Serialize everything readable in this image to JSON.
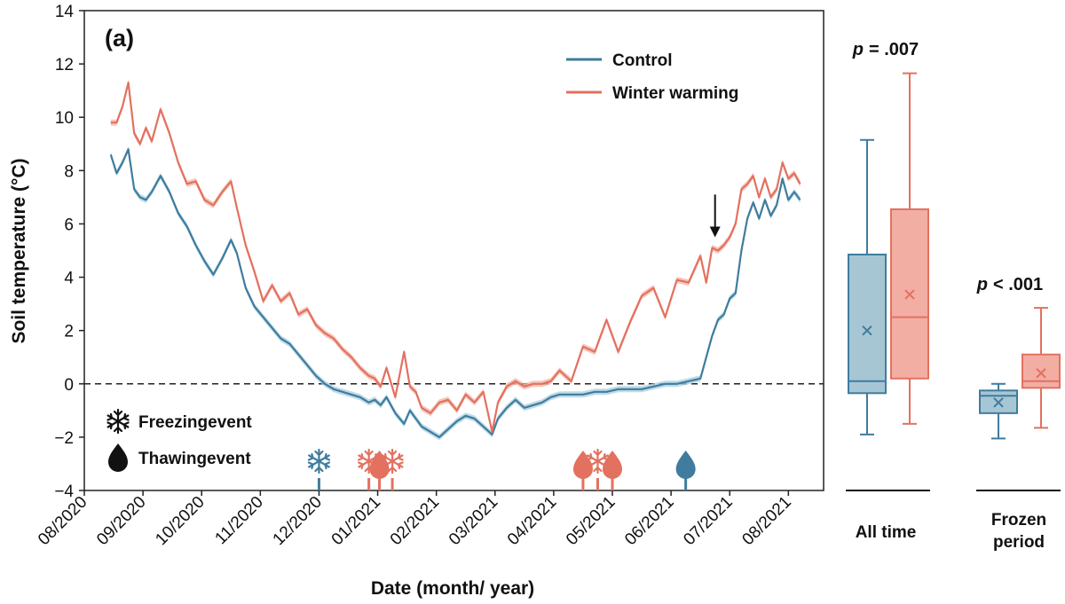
{
  "chart_data": [
    {
      "type": "line",
      "panel_label": "(a)",
      "xlabel": "Date (month/ year)",
      "ylabel": "Soil temperature (°C)",
      "ylim": [
        -4,
        14
      ],
      "yticks": [
        -4,
        -2,
        0,
        2,
        4,
        6,
        8,
        10,
        12,
        14
      ],
      "ytick_labels": [
        "−4",
        "−2",
        "0",
        "2",
        "4",
        "6",
        "8",
        "10",
        "12",
        "14"
      ],
      "xlim": [
        0,
        12.6
      ],
      "xtick_labels": [
        "08/2020",
        "09/2020",
        "10/2020",
        "11/2020",
        "12/2020",
        "01/2021",
        "02/2021",
        "03/2021",
        "04/2021",
        "05/2021",
        "06/2021",
        "07/2021",
        "08/2021"
      ],
      "reference_line": 0,
      "legend": [
        {
          "name": "Control",
          "color": "#3f7c9e"
        },
        {
          "name": "Winter warming",
          "color": "#e3715f"
        }
      ],
      "series": [
        {
          "name": "Control",
          "color": "#3f7c9e",
          "band_color": "#a8cfe0",
          "x": [
            0.45,
            0.55,
            0.65,
            0.75,
            0.85,
            0.95,
            1.05,
            1.15,
            1.3,
            1.45,
            1.6,
            1.75,
            1.9,
            2.05,
            2.2,
            2.35,
            2.5,
            2.6,
            2.75,
            2.9,
            3.05,
            3.2,
            3.35,
            3.5,
            3.65,
            3.8,
            3.95,
            4.1,
            4.25,
            4.4,
            4.55,
            4.7,
            4.85,
            4.95,
            5.05,
            5.15,
            5.3,
            5.45,
            5.55,
            5.65,
            5.75,
            5.9,
            6.05,
            6.2,
            6.35,
            6.5,
            6.65,
            6.8,
            6.95,
            7.05,
            7.2,
            7.35,
            7.5,
            7.65,
            7.8,
            7.95,
            8.1,
            8.3,
            8.5,
            8.7,
            8.9,
            9.1,
            9.3,
            9.5,
            9.7,
            9.9,
            10.1,
            10.3,
            10.5,
            10.6,
            10.7,
            10.8,
            10.9,
            11.0,
            11.1,
            11.2,
            11.3,
            11.4,
            11.5,
            11.6,
            11.7,
            11.8,
            11.9,
            12.0,
            12.1,
            12.2
          ],
          "y": [
            8.6,
            7.9,
            8.3,
            8.8,
            7.3,
            7.0,
            6.9,
            7.2,
            7.8,
            7.2,
            6.4,
            5.9,
            5.2,
            4.6,
            4.1,
            4.7,
            5.4,
            4.9,
            3.6,
            2.9,
            2.5,
            2.1,
            1.7,
            1.5,
            1.1,
            0.7,
            0.3,
            0.0,
            -0.2,
            -0.3,
            -0.4,
            -0.5,
            -0.7,
            -0.6,
            -0.8,
            -0.5,
            -1.1,
            -1.5,
            -1.0,
            -1.3,
            -1.6,
            -1.8,
            -2.0,
            -1.7,
            -1.4,
            -1.2,
            -1.3,
            -1.6,
            -1.9,
            -1.3,
            -0.9,
            -0.6,
            -0.9,
            -0.8,
            -0.7,
            -0.5,
            -0.4,
            -0.4,
            -0.4,
            -0.3,
            -0.3,
            -0.2,
            -0.2,
            -0.2,
            -0.1,
            0.0,
            0.0,
            0.1,
            0.2,
            1.0,
            1.8,
            2.4,
            2.6,
            3.2,
            3.4,
            5.0,
            6.2,
            6.8,
            6.2,
            6.9,
            6.3,
            6.7,
            7.7,
            6.9,
            7.2,
            6.9
          ]
        },
        {
          "name": "Winter warming",
          "color": "#e3715f",
          "band_color": "#f4b3a6",
          "x": [
            0.45,
            0.55,
            0.65,
            0.75,
            0.85,
            0.95,
            1.05,
            1.15,
            1.3,
            1.45,
            1.6,
            1.75,
            1.9,
            2.05,
            2.2,
            2.35,
            2.5,
            2.6,
            2.75,
            2.9,
            3.05,
            3.2,
            3.35,
            3.5,
            3.65,
            3.8,
            3.95,
            4.1,
            4.25,
            4.4,
            4.55,
            4.7,
            4.85,
            4.95,
            5.05,
            5.15,
            5.3,
            5.45,
            5.55,
            5.65,
            5.75,
            5.9,
            6.05,
            6.2,
            6.35,
            6.5,
            6.65,
            6.8,
            6.95,
            7.05,
            7.2,
            7.35,
            7.5,
            7.65,
            7.8,
            7.95,
            8.1,
            8.3,
            8.5,
            8.7,
            8.9,
            9.1,
            9.3,
            9.5,
            9.7,
            9.9,
            10.1,
            10.3,
            10.5,
            10.6,
            10.7,
            10.8,
            10.9,
            11.0,
            11.1,
            11.2,
            11.3,
            11.4,
            11.5,
            11.6,
            11.7,
            11.8,
            11.9,
            12.0,
            12.1,
            12.2
          ],
          "y": [
            9.8,
            9.8,
            10.4,
            11.3,
            9.4,
            9.0,
            9.6,
            9.1,
            10.3,
            9.4,
            8.3,
            7.5,
            7.6,
            6.9,
            6.7,
            7.2,
            7.6,
            6.6,
            5.2,
            4.2,
            3.1,
            3.7,
            3.1,
            3.4,
            2.6,
            2.8,
            2.2,
            1.9,
            1.7,
            1.3,
            1.0,
            0.6,
            0.3,
            0.2,
            -0.1,
            0.6,
            -0.5,
            1.2,
            -0.1,
            -0.3,
            -0.9,
            -1.1,
            -0.7,
            -0.6,
            -1.0,
            -0.4,
            -0.7,
            -0.3,
            -1.8,
            -0.7,
            -0.1,
            0.1,
            -0.1,
            0.0,
            0.0,
            0.1,
            0.5,
            0.1,
            1.4,
            1.2,
            2.4,
            1.2,
            2.3,
            3.3,
            3.6,
            2.5,
            3.9,
            3.8,
            4.8,
            3.8,
            5.1,
            5.0,
            5.2,
            5.5,
            6.0,
            7.3,
            7.5,
            7.8,
            7.0,
            7.7,
            7.0,
            7.3,
            8.3,
            7.7,
            7.9,
            7.5
          ]
        }
      ],
      "annotation_arrow": {
        "x": 10.75,
        "y_from": 7.1,
        "y_to": 5.5
      },
      "events_legend": [
        {
          "icon": "snowflake",
          "label": "Freezingevent"
        },
        {
          "icon": "drop",
          "label": "Thawingevent"
        }
      ],
      "events": [
        {
          "type": "freezing",
          "x": 4.0,
          "color": "#3f7c9e"
        },
        {
          "type": "freezing",
          "x": 4.85,
          "color": "#e3715f"
        },
        {
          "type": "thawing",
          "x": 5.03,
          "color": "#e3715f"
        },
        {
          "type": "freezing",
          "x": 5.25,
          "color": "#e3715f"
        },
        {
          "type": "thawing",
          "x": 8.5,
          "color": "#e3715f"
        },
        {
          "type": "freezing",
          "x": 8.75,
          "color": "#e3715f"
        },
        {
          "type": "thawing",
          "x": 9.0,
          "color": "#e3715f"
        },
        {
          "type": "thawing",
          "x": 10.25,
          "color": "#3f7c9e"
        }
      ]
    },
    {
      "type": "box",
      "ylim": [
        -4,
        14
      ],
      "groups": [
        {
          "label": "All time",
          "p_label": "p",
          "p_value": "=  .007",
          "boxes": [
            {
              "name": "Control",
              "color": "#3f7c9e",
              "fill": "#a7c6d4",
              "whisker_low": -1.9,
              "q1": -0.35,
              "median": 0.1,
              "q3": 4.85,
              "whisker_high": 9.15,
              "mean": 2.0
            },
            {
              "name": "Winter warming",
              "color": "#e3715f",
              "fill": "#f3aea4",
              "whisker_low": -1.5,
              "q1": 0.2,
              "median": 2.5,
              "q3": 6.55,
              "whisker_high": 11.65,
              "mean": 3.35
            }
          ]
        },
        {
          "label_lines": [
            "Frozen",
            "period"
          ],
          "p_label": "p",
          "p_value": "< .001",
          "boxes": [
            {
              "name": "Control",
              "color": "#3f7c9e",
              "fill": "#a7c6d4",
              "whisker_low": -2.05,
              "q1": -1.1,
              "median": -0.45,
              "q3": -0.25,
              "whisker_high": 0.0,
              "mean": -0.7
            },
            {
              "name": "Winter warming",
              "color": "#e3715f",
              "fill": "#f3aea4",
              "whisker_low": -1.65,
              "q1": -0.15,
              "median": 0.1,
              "q3": 1.1,
              "whisker_high": 2.85,
              "mean": 0.4
            }
          ]
        }
      ]
    }
  ]
}
